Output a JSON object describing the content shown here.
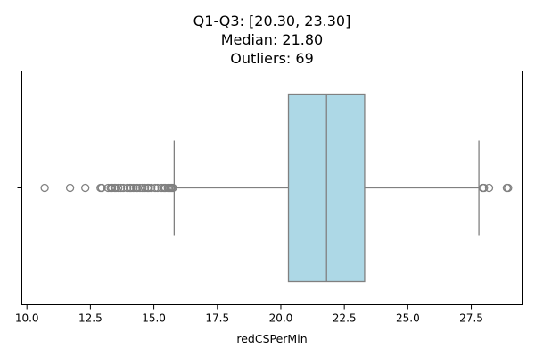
{
  "chart_data": {
    "type": "box",
    "title_lines": [
      "Q1-Q3: [20.30, 23.30]",
      "Median: 21.80",
      "Outliers: 69"
    ],
    "xlabel": "redCSPerMin",
    "ylabel": "",
    "xlim": [
      9.8,
      29.5
    ],
    "xticks": [
      10.0,
      12.5,
      15.0,
      17.5,
      20.0,
      22.5,
      25.0,
      27.5
    ],
    "xtick_labels": [
      "10.0",
      "12.5",
      "15.0",
      "17.5",
      "20.0",
      "22.5",
      "25.0",
      "27.5"
    ],
    "grid": false,
    "box": {
      "q1": 20.3,
      "median": 21.8,
      "q3": 23.3,
      "whisker_low": 15.8,
      "whisker_high": 27.8,
      "fill_color": "#add8e6",
      "edge_color": "#808080"
    },
    "outliers_count": 69,
    "outliers": [
      10.7,
      11.7,
      12.3,
      12.9,
      12.95,
      13.2,
      13.3,
      13.35,
      13.45,
      13.5,
      13.6,
      13.7,
      13.8,
      13.95,
      14.05,
      14.1,
      14.2,
      14.3,
      14.35,
      14.45,
      14.55,
      14.65,
      14.75,
      14.8,
      14.9,
      15.05,
      15.15,
      15.3,
      15.4,
      15.45,
      15.55,
      15.6,
      15.65,
      15.7,
      15.75,
      27.95,
      28.0,
      28.2,
      28.9,
      28.95
    ]
  }
}
